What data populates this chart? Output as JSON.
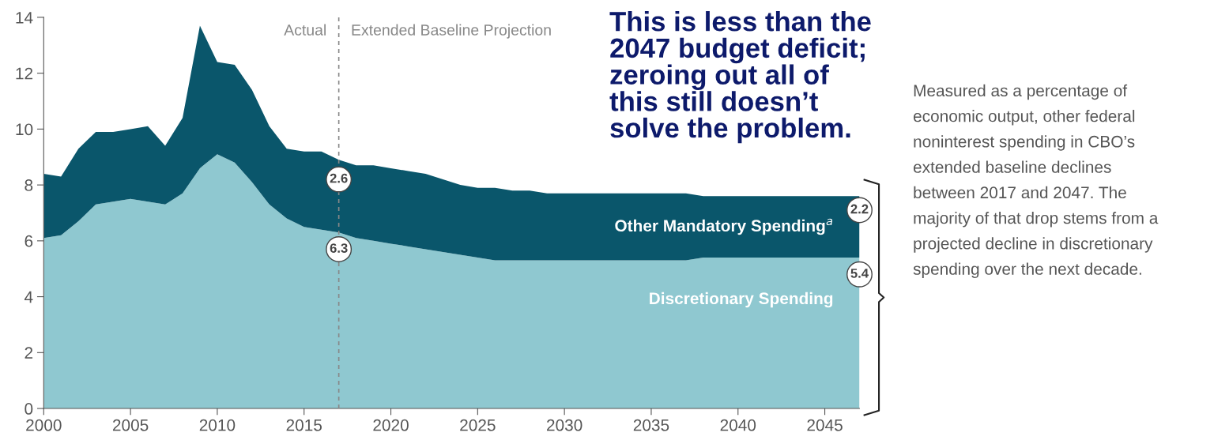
{
  "chart_data": {
    "type": "area",
    "stacked": true,
    "x": [
      2000,
      2001,
      2002,
      2003,
      2004,
      2005,
      2006,
      2007,
      2008,
      2009,
      2010,
      2011,
      2012,
      2013,
      2014,
      2015,
      2016,
      2017,
      2018,
      2019,
      2020,
      2021,
      2022,
      2023,
      2024,
      2025,
      2026,
      2027,
      2028,
      2029,
      2030,
      2031,
      2032,
      2033,
      2034,
      2035,
      2036,
      2037,
      2038,
      2039,
      2040,
      2041,
      2042,
      2043,
      2044,
      2045,
      2046,
      2047
    ],
    "series": [
      {
        "name": "Discretionary Spending",
        "color": "#8fc8d0",
        "values": [
          6.1,
          6.2,
          6.7,
          7.3,
          7.4,
          7.5,
          7.4,
          7.3,
          7.7,
          8.6,
          9.1,
          8.8,
          8.1,
          7.3,
          6.8,
          6.5,
          6.4,
          6.3,
          6.1,
          6.0,
          5.9,
          5.8,
          5.7,
          5.6,
          5.5,
          5.4,
          5.3,
          5.3,
          5.3,
          5.3,
          5.3,
          5.3,
          5.3,
          5.3,
          5.3,
          5.3,
          5.3,
          5.3,
          5.4,
          5.4,
          5.4,
          5.4,
          5.4,
          5.4,
          5.4,
          5.4,
          5.4,
          5.4
        ],
        "value_labels": [
          null,
          null,
          null,
          null,
          null,
          null,
          null,
          null,
          null,
          null,
          null,
          null,
          null,
          null,
          null,
          null,
          null,
          "6.3",
          null,
          null,
          null,
          null,
          null,
          null,
          null,
          null,
          null,
          null,
          null,
          null,
          null,
          null,
          null,
          null,
          null,
          null,
          null,
          null,
          null,
          null,
          null,
          null,
          null,
          null,
          null,
          null,
          null,
          "5.4"
        ]
      },
      {
        "name": "Other Mandatory Spending$^{a}$",
        "color": "#0a566b",
        "values": [
          2.3,
          2.1,
          2.6,
          2.6,
          2.5,
          2.5,
          2.7,
          2.1,
          2.7,
          5.1,
          3.3,
          3.5,
          3.3,
          2.8,
          2.5,
          2.7,
          2.8,
          2.6,
          2.6,
          2.7,
          2.7,
          2.7,
          2.7,
          2.6,
          2.5,
          2.5,
          2.6,
          2.5,
          2.5,
          2.4,
          2.4,
          2.4,
          2.4,
          2.4,
          2.4,
          2.4,
          2.4,
          2.4,
          2.2,
          2.2,
          2.2,
          2.2,
          2.2,
          2.2,
          2.2,
          2.2,
          2.2,
          2.2
        ],
        "value_labels": [
          null,
          null,
          null,
          null,
          null,
          null,
          null,
          null,
          null,
          null,
          null,
          null,
          null,
          null,
          null,
          null,
          null,
          "2.6",
          null,
          null,
          null,
          null,
          null,
          null,
          null,
          null,
          null,
          null,
          null,
          null,
          null,
          null,
          null,
          null,
          null,
          null,
          null,
          null,
          null,
          null,
          null,
          null,
          null,
          null,
          null,
          null,
          null,
          "2.2"
        ]
      }
    ],
    "xlim": [
      2000,
      2047
    ],
    "xticks": [
      2000,
      2005,
      2010,
      2015,
      2020,
      2025,
      2030,
      2035,
      2040,
      2045
    ],
    "ylim": [
      0,
      14
    ],
    "yticks": [
      0,
      2,
      4,
      6,
      8,
      10,
      12,
      14
    ],
    "grid": false,
    "legend": false,
    "ref_lines": [
      {
        "axis": "x",
        "value": 2017,
        "color": "#888888",
        "line_style": "dashed"
      }
    ],
    "annotations": [
      "Actual",
      "Extended Baseline Projection",
      "This is less than the\n2047 budget deficit;\nzeroing out all of\nthis still doesn’t\nsolve the problem.",
      "Measured as a percentage of\neconomic output, other federal\nnoninterest spending in CBO’s\nextended baseline declines\nbetween 2017 and 2047. The\nmajority of that drop stems from a\nprojected decline in discretionary\nspending over the next decade."
    ]
  }
}
